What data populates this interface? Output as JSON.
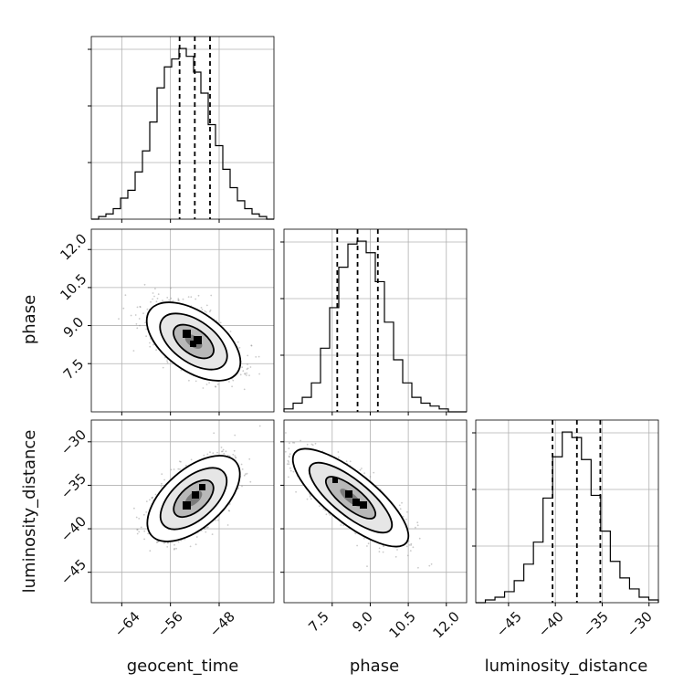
{
  "chart_data": {
    "type": "corner",
    "parameters": [
      "geocent_time",
      "phase",
      "luminosity_distance"
    ],
    "quantiles": {
      "geocent_time": [
        -54.5,
        -52.0,
        -49.5
      ],
      "phase": [
        7.7,
        8.5,
        9.3
      ],
      "luminosity_distance": [
        -40.3,
        -37.7,
        -35.2
      ]
    },
    "histograms": {
      "geocent_time": {
        "range": [
          -69,
          -39
        ],
        "counts": [
          0,
          1,
          2,
          4,
          8,
          11,
          18,
          26,
          37,
          50,
          58,
          61,
          65,
          62,
          56,
          48,
          36,
          28,
          19,
          12,
          7,
          4,
          2,
          1,
          0
        ]
      },
      "phase": {
        "range": [
          5.6,
          12.8
        ],
        "counts": [
          1,
          3,
          5,
          10,
          22,
          36,
          50,
          58,
          59,
          55,
          45,
          31,
          18,
          10,
          5,
          3,
          2,
          1,
          0,
          0
        ]
      },
      "luminosity_distance": {
        "range": [
          -48.5,
          -29.0
        ],
        "counts": [
          0,
          1,
          2,
          4,
          8,
          14,
          22,
          38,
          53,
          62,
          60,
          52,
          39,
          26,
          15,
          9,
          5,
          2,
          1
        ]
      }
    },
    "ticks": {
      "geocent_time": [
        "−64",
        "−56",
        "−48"
      ],
      "phase": [
        "7.5",
        "9.0",
        "10.5",
        "12.0"
      ],
      "luminosity_distance": [
        "−45",
        "−40",
        "−35",
        "−30"
      ]
    },
    "grid": true
  },
  "labels": {
    "x_geocent": "geocent_time",
    "x_phase": "phase",
    "x_lumdist": "luminosity_distance",
    "y_phase": "phase",
    "y_lumdist": "luminosity_distance"
  },
  "ticklabels": {
    "geo": [
      "−64",
      "−56",
      "−48"
    ],
    "phase": [
      "7.5",
      "9.0",
      "10.5",
      "12.0"
    ],
    "lum": [
      "−45",
      "−40",
      "−35",
      "−30"
    ]
  }
}
